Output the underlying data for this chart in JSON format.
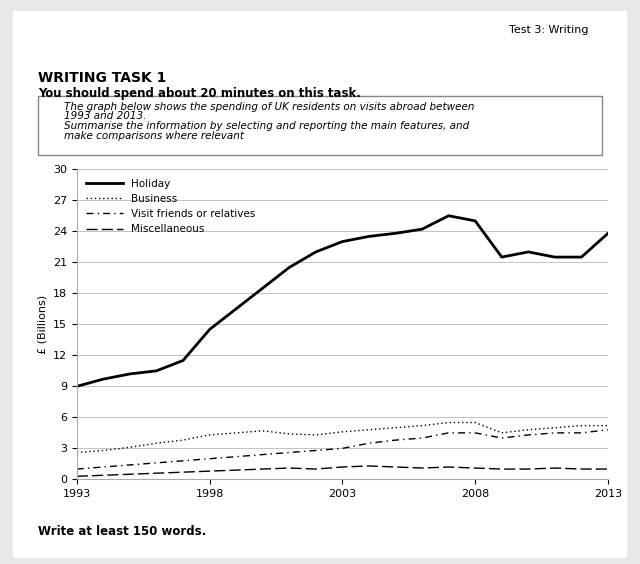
{
  "page_bg": "#f0f0f0",
  "content_bg": "#ffffff",
  "header_text": "Test 3: Writing",
  "writing_label": "WRITING",
  "task_title": "WRITING TASK 1",
  "task_subtitle": "You should spend about 20 minutes on this task.",
  "task_description_line1": "The graph below shows the spending of UK residents on visits abroad between",
  "task_description_line2": "1993 and 2013.",
  "task_description_line3": "Summarise the information by selecting and reporting the main features, and",
  "task_description_line4": "make comparisons where relevant",
  "footer_text": "Write at least 150 words.",
  "ylabel": "£ (Billions)",
  "years": [
    1993,
    1994,
    1995,
    1996,
    1997,
    1998,
    1999,
    2000,
    2001,
    2002,
    2003,
    2004,
    2005,
    2006,
    2007,
    2008,
    2009,
    2010,
    2011,
    2012,
    2013
  ],
  "holiday": [
    9.0,
    9.7,
    10.2,
    10.5,
    11.5,
    14.5,
    16.5,
    18.5,
    20.5,
    22.0,
    23.0,
    23.5,
    23.8,
    24.2,
    25.5,
    25.0,
    21.5,
    22.0,
    21.5,
    21.5,
    23.8
  ],
  "business": [
    2.6,
    2.8,
    3.1,
    3.5,
    3.8,
    4.3,
    4.5,
    4.7,
    4.4,
    4.3,
    4.6,
    4.8,
    5.0,
    5.2,
    5.5,
    5.5,
    4.5,
    4.8,
    5.0,
    5.2,
    5.2
  ],
  "visit_friends": [
    1.0,
    1.2,
    1.4,
    1.6,
    1.8,
    2.0,
    2.2,
    2.4,
    2.6,
    2.8,
    3.0,
    3.5,
    3.8,
    4.0,
    4.5,
    4.5,
    4.0,
    4.3,
    4.5,
    4.5,
    4.8
  ],
  "miscellaneous": [
    0.3,
    0.4,
    0.5,
    0.6,
    0.7,
    0.8,
    0.9,
    1.0,
    1.1,
    1.0,
    1.2,
    1.3,
    1.2,
    1.1,
    1.2,
    1.1,
    1.0,
    1.0,
    1.1,
    1.0,
    1.0
  ],
  "yticks": [
    0,
    3,
    6,
    9,
    12,
    15,
    18,
    21,
    24,
    27,
    30
  ],
  "xticks": [
    1993,
    1998,
    2003,
    2008,
    2013
  ],
  "ylim": [
    0,
    30
  ]
}
